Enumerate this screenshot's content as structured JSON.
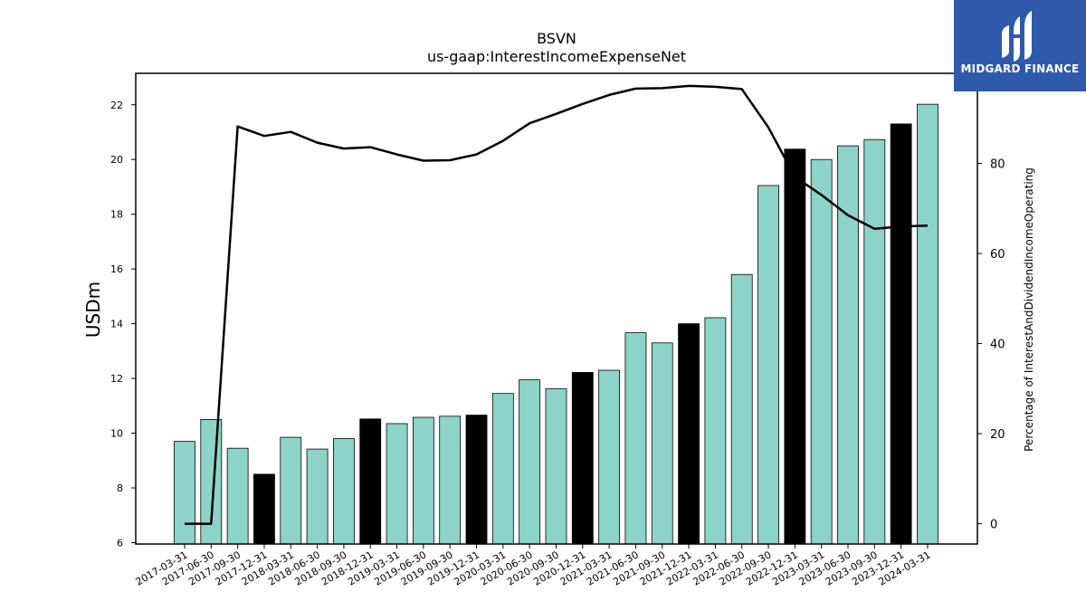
{
  "brand": {
    "name": "MIDGARD FINANCE",
    "bg_color": "#2f5aab"
  },
  "chart_data": {
    "type": "bar",
    "title": "BSVN",
    "subtitle": "us-gaap:InterestIncomeExpenseNet",
    "ylabel": "USDm",
    "y2label": "Percentage of InterestAndDividendIncomeOperating",
    "ylim": [
      5.95,
      23.15
    ],
    "y2lim": [
      -4.5,
      100
    ],
    "yticks": [
      6,
      8,
      10,
      12,
      14,
      16,
      18,
      20,
      22
    ],
    "y2ticks": [
      0,
      20,
      40,
      60,
      80
    ],
    "bar_colors": {
      "quarter": "#8dd3c7",
      "year_end": "#000000"
    },
    "line_color": "#000000",
    "categories": [
      "2017-03-31",
      "2017-06-30",
      "2017-09-30",
      "2017-12-31",
      "2018-03-31",
      "2018-06-30",
      "2018-09-30",
      "2018-12-31",
      "2019-03-31",
      "2019-06-30",
      "2019-09-30",
      "2019-12-31",
      "2020-03-31",
      "2020-06-30",
      "2020-09-30",
      "2020-12-31",
      "2021-03-31",
      "2021-06-30",
      "2021-09-30",
      "2021-12-31",
      "2022-03-31",
      "2022-06-30",
      "2022-09-30",
      "2022-12-31",
      "2023-03-31",
      "2023-06-30",
      "2023-09-30",
      "2023-12-31",
      "2024-03-31"
    ],
    "series": [
      {
        "axis": "left",
        "kind": "bar",
        "values": [
          9.7,
          10.5,
          9.45,
          8.5,
          9.85,
          9.42,
          9.8,
          10.52,
          10.35,
          10.58,
          10.62,
          10.66,
          11.45,
          11.95,
          11.62,
          12.22,
          12.3,
          13.67,
          13.3,
          14.0,
          14.22,
          15.8,
          19.05,
          20.38,
          20.0,
          20.5,
          20.73,
          21.3,
          22.02
        ]
      },
      {
        "axis": "right",
        "kind": "line",
        "values": [
          0,
          0,
          88.2,
          86.1,
          87.0,
          84.6,
          83.3,
          83.6,
          82.0,
          80.6,
          80.7,
          82.0,
          85.0,
          88.9,
          91.0,
          93.2,
          95.2,
          96.6,
          96.7,
          97.2,
          97.0,
          96.5,
          88.0,
          77.0,
          73.0,
          68.5,
          65.5,
          66.0,
          66.2
        ]
      }
    ]
  }
}
